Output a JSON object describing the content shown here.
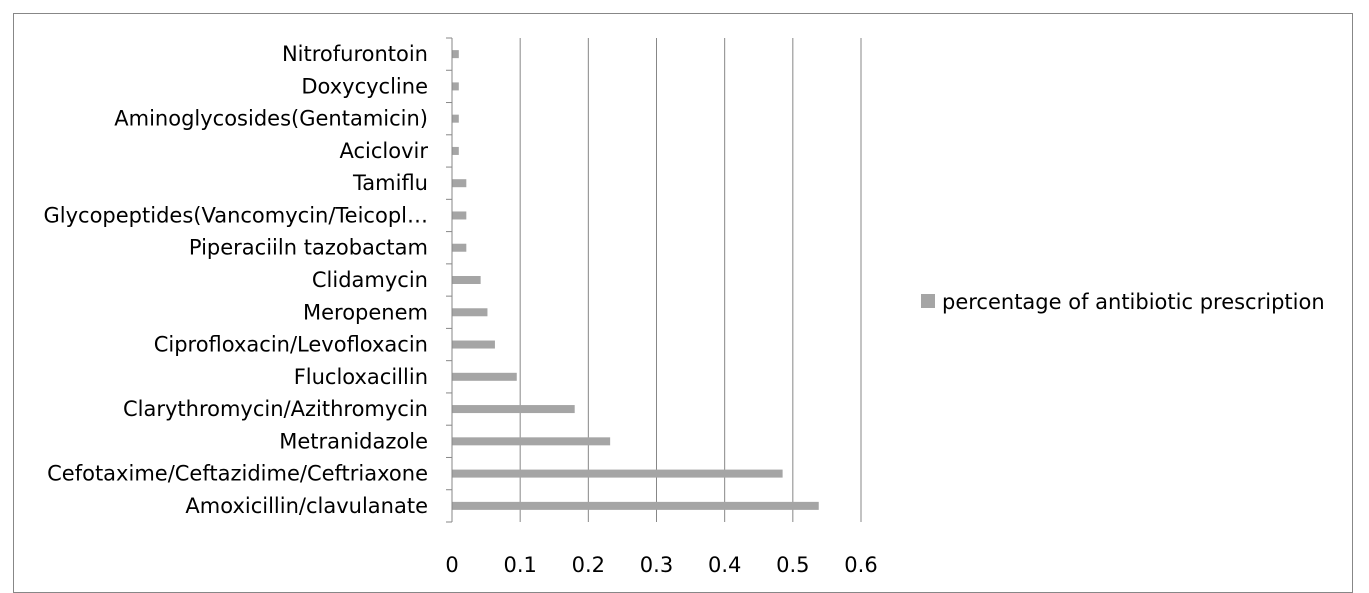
{
  "chart_data": {
    "type": "bar",
    "orientation": "horizontal",
    "categories": [
      "Amoxicillin/clavulanate",
      "Cefotaxime/Ceftazidime/Ceftriaxone",
      "Metranidazole",
      "Clarythromycin/Azithromycin",
      "Flucloxacillin",
      "Ciprofloxacin/Levofloxacin",
      "Meropenem",
      "Clidamycin",
      "Piperaciiln tazobactam",
      "Glycopeptides(Vancomycin/Teicopl…",
      "Tamiflu",
      "Aciclovir",
      "Aminoglycosides(Gentamicin)",
      "Doxycycline",
      "Nitrofurontoin"
    ],
    "series": [
      {
        "name": "percentage of antibiotic prescription",
        "values": [
          0.538,
          0.485,
          0.232,
          0.18,
          0.095,
          0.063,
          0.052,
          0.042,
          0.021,
          0.021,
          0.021,
          0.01,
          0.01,
          0.01,
          0.01
        ]
      }
    ],
    "xlim": [
      0,
      0.6
    ],
    "xticks": [
      "0",
      "0.1",
      "0.2",
      "0.3",
      "0.4",
      "0.5",
      "0.6"
    ],
    "grid": "vertical",
    "legend_position": "right",
    "bar_color": "#a5a5a5",
    "grid_color": "#878787"
  }
}
